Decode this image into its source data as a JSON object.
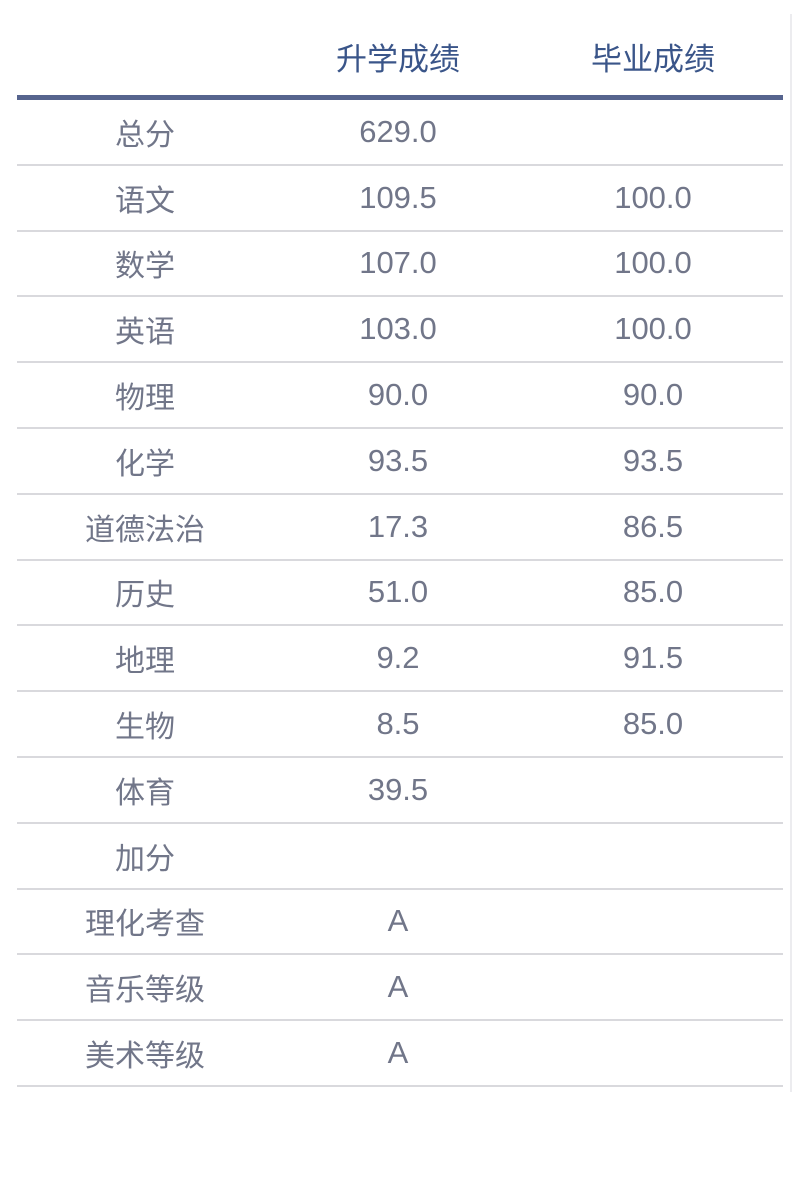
{
  "score_table": {
    "column_headers": [
      {
        "label": "升学成绩"
      },
      {
        "label": "毕业成绩"
      }
    ],
    "rows": [
      {
        "label": "总分",
        "entrance": "629.0",
        "graduation": ""
      },
      {
        "label": "语文",
        "entrance": "109.5",
        "graduation": "100.0"
      },
      {
        "label": "数学",
        "entrance": "107.0",
        "graduation": "100.0"
      },
      {
        "label": "英语",
        "entrance": "103.0",
        "graduation": "100.0"
      },
      {
        "label": "物理",
        "entrance": "90.0",
        "graduation": "90.0"
      },
      {
        "label": "化学",
        "entrance": "93.5",
        "graduation": "93.5"
      },
      {
        "label": "道德法治",
        "entrance": "17.3",
        "graduation": "86.5"
      },
      {
        "label": "历史",
        "entrance": "51.0",
        "graduation": "85.0"
      },
      {
        "label": "地理",
        "entrance": "9.2",
        "graduation": "91.5"
      },
      {
        "label": "生物",
        "entrance": "8.5",
        "graduation": "85.0"
      },
      {
        "label": "体育",
        "entrance": "39.5",
        "graduation": ""
      },
      {
        "label": "加分",
        "entrance": "",
        "graduation": ""
      },
      {
        "label": "理化考查",
        "entrance": "A",
        "graduation": ""
      },
      {
        "label": "音乐等级",
        "entrance": "A",
        "graduation": ""
      },
      {
        "label": "美术等级",
        "entrance": "A",
        "graduation": ""
      }
    ],
    "colors": {
      "header_text": "#3a5589",
      "header_rule": "#56648e",
      "body_text": "#717689",
      "row_divider": "#d9d9dd"
    }
  }
}
